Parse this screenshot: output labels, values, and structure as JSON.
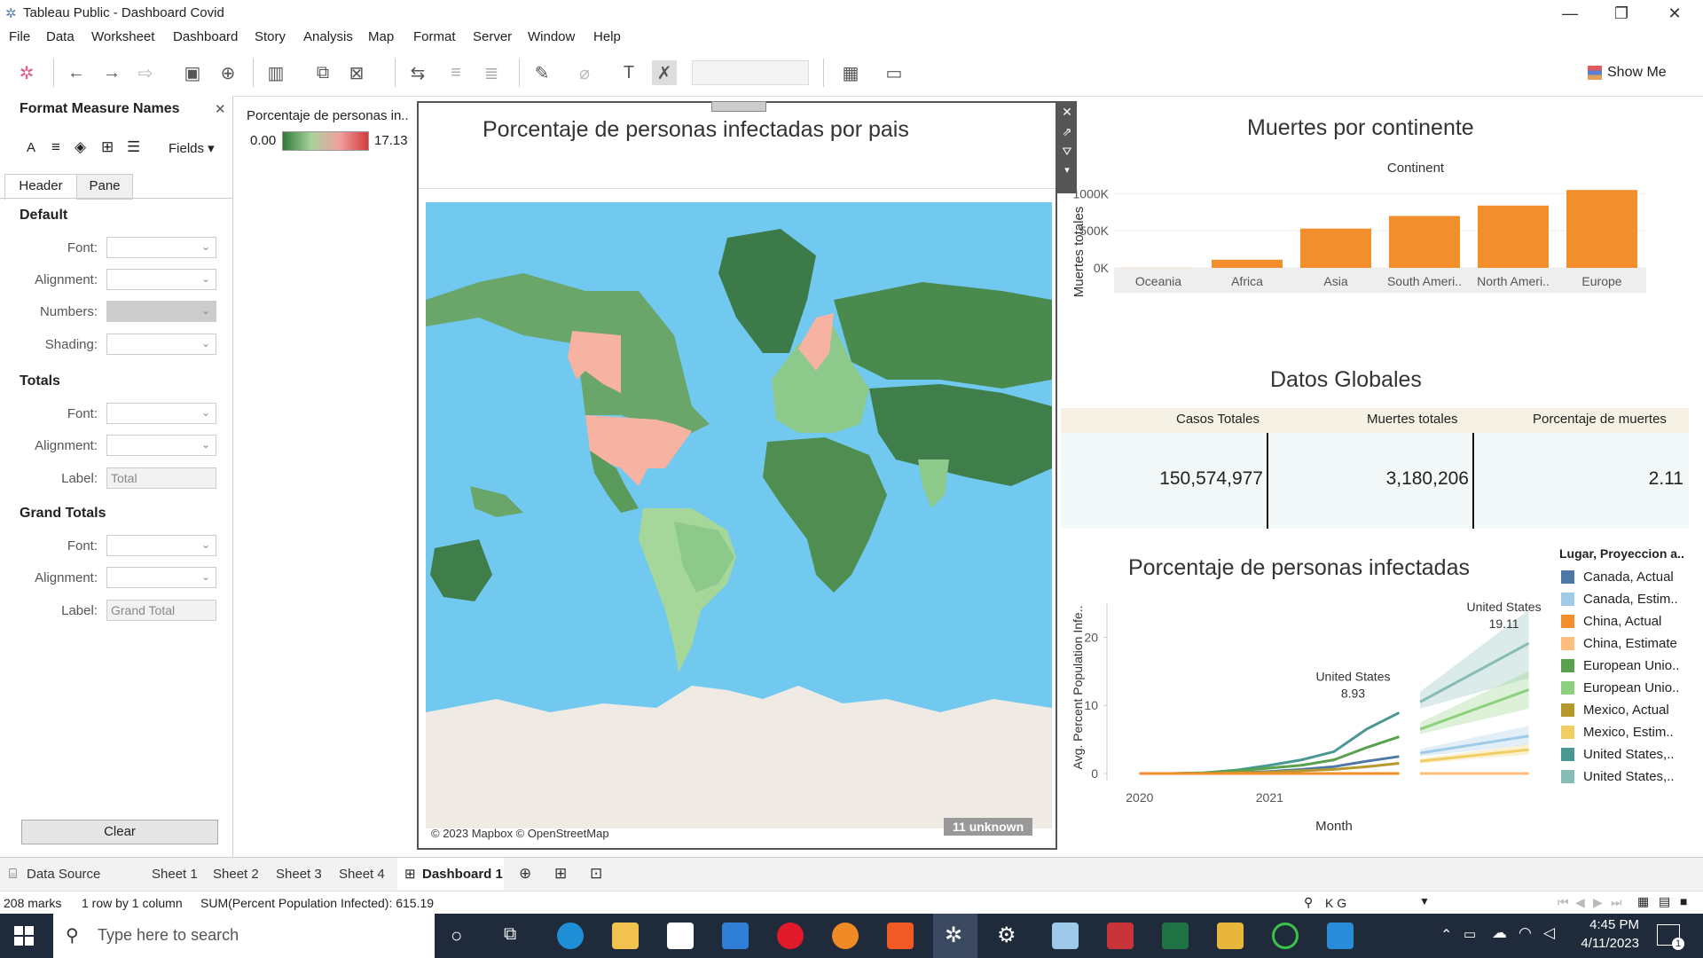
{
  "window": {
    "title": "Tableau Public - Dashboard Covid"
  },
  "menu": [
    "File",
    "Data",
    "Worksheet",
    "Dashboard",
    "Story",
    "Analysis",
    "Map",
    "Format",
    "Server",
    "Window",
    "Help"
  ],
  "toolbar": {
    "show_me": "Show Me"
  },
  "format_pane": {
    "title": "Format Measure Names",
    "fields_label": "Fields",
    "tabs": [
      "Header",
      "Pane"
    ],
    "sections": {
      "default": {
        "title": "Default",
        "font": "Font:",
        "alignment": "Alignment:",
        "numbers": "Numbers:",
        "shading": "Shading:"
      },
      "totals": {
        "title": "Totals",
        "font": "Font:",
        "alignment": "Alignment:",
        "label": "Label:",
        "label_value": "Total"
      },
      "grand_totals": {
        "title": "Grand Totals",
        "font": "Font:",
        "alignment": "Alignment:",
        "label": "Label:",
        "label_value": "Grand Total"
      }
    },
    "clear": "Clear"
  },
  "legend": {
    "title": "Porcentaje de personas in..",
    "min": "0.00",
    "max": "17.13"
  },
  "map": {
    "title": "Porcentaje de personas infectadas por pais",
    "credit": "© 2023 Mapbox © OpenStreetMap",
    "unknown": "11 unknown"
  },
  "deaths_chart": {
    "title": "Muertes por continente",
    "header": "Continent",
    "ylabel": "Muertes totales",
    "ticks": [
      "1000K",
      "500K",
      "0K"
    ]
  },
  "global": {
    "title": "Datos Globales",
    "headers": [
      "Casos Totales",
      "Muertes totales",
      "Porcentaje de muertes"
    ],
    "values": [
      "150,574,977",
      "3,180,206",
      "2.11"
    ]
  },
  "infected_chart": {
    "title": "Porcentaje de personas infectadas",
    "ylabel": "Avg. Percent Population Infe..",
    "xlabel": "Month",
    "yticks": [
      "20",
      "10",
      "0"
    ],
    "xticks": [
      "2020",
      "2021"
    ],
    "annotations": [
      {
        "label": "United States",
        "value": "8.93"
      },
      {
        "label": "United States",
        "value": "19.11"
      }
    ],
    "legend_title": "Lugar, Proyeccion a..",
    "legend": [
      {
        "label": "Canada, Actual",
        "color": "#4e79a7"
      },
      {
        "label": "Canada, Estim..",
        "color": "#a0cbe8"
      },
      {
        "label": "China, Actual",
        "color": "#f28e2b"
      },
      {
        "label": "China, Estimate",
        "color": "#ffbe7d"
      },
      {
        "label": "European Unio..",
        "color": "#59a14f"
      },
      {
        "label": "European Unio..",
        "color": "#8cd17d"
      },
      {
        "label": "Mexico, Actual",
        "color": "#b6992d"
      },
      {
        "label": "Mexico, Estim..",
        "color": "#f1ce63"
      },
      {
        "label": "United States,..",
        "color": "#499894"
      },
      {
        "label": "United States,..",
        "color": "#86bcb6"
      }
    ]
  },
  "chart_data": [
    {
      "type": "bar",
      "title": "Muertes por continente",
      "categories": [
        "Oceania",
        "Africa",
        "Asia",
        "South Ameri..",
        "North Ameri..",
        "Europe"
      ],
      "values": [
        2000,
        110000,
        530000,
        700000,
        840000,
        1050000
      ],
      "ylabel": "Muertes totales",
      "ylim": [
        0,
        1100000
      ],
      "color": "#f28e2b"
    },
    {
      "type": "line",
      "title": "Porcentaje de personas infectadas",
      "xlabel": "Month",
      "ylabel": "Avg. Percent Population Infe..",
      "ylim": [
        0,
        25
      ],
      "x_actual": [
        "2020-01",
        "2020-04",
        "2020-07",
        "2020-10",
        "2021-01",
        "2021-04",
        "2021-07",
        "2021-10",
        "2022-01"
      ],
      "series_actual": [
        {
          "color": "#499894",
          "values": [
            0,
            0,
            0.1,
            0.5,
            1.2,
            2.0,
            3.2,
            6.5,
            8.93
          ]
        },
        {
          "color": "#59a14f",
          "values": [
            0,
            0,
            0.1,
            0.4,
            0.8,
            1.2,
            2.0,
            3.8,
            5.4
          ]
        },
        {
          "color": "#4e79a7",
          "values": [
            0,
            0,
            0,
            0.1,
            0.3,
            0.6,
            1.0,
            1.8,
            2.5
          ]
        },
        {
          "color": "#b6992d",
          "values": [
            0,
            0,
            0,
            0.1,
            0.2,
            0.4,
            0.6,
            1.0,
            1.5
          ]
        },
        {
          "color": "#f28e2b",
          "values": [
            0,
            0,
            0,
            0,
            0,
            0,
            0,
            0,
            0
          ]
        }
      ],
      "x_estimate": [
        "2022-03",
        "2023-01"
      ],
      "series_estimate": [
        {
          "color": "#86bcb6",
          "values": [
            10.5,
            19.11
          ],
          "band": [
            [
              9.5,
              12
            ],
            [
              14,
              24
            ]
          ]
        },
        {
          "color": "#8cd17d",
          "values": [
            6.5,
            12.3
          ],
          "band": [
            [
              5.8,
              7.5
            ],
            [
              9.5,
              15
            ]
          ]
        },
        {
          "color": "#a0cbe8",
          "values": [
            3.0,
            5.5
          ],
          "band": [
            [
              2.5,
              3.6
            ],
            [
              4.2,
              7
            ]
          ]
        },
        {
          "color": "#f1ce63",
          "values": [
            1.8,
            3.5
          ],
          "band": [
            [
              1.5,
              2.2
            ],
            [
              2.8,
              4.3
            ]
          ]
        },
        {
          "color": "#ffbe7d",
          "values": [
            0,
            0
          ],
          "band": [
            [
              0,
              0
            ],
            [
              0,
              0
            ]
          ]
        }
      ]
    }
  ],
  "sheet_tabs": [
    "Data Source",
    "Sheet 1",
    "Sheet 2",
    "Sheet 3",
    "Sheet 4",
    "Dashboard 1"
  ],
  "status": {
    "marks": "208 marks",
    "rows": "1 row by 1 column",
    "sum": "SUM(Percent Population Infected): 615.19",
    "user": "K G"
  },
  "taskbar": {
    "search": "Type here to search",
    "time": "4:45 PM",
    "date": "4/11/2023",
    "notif": "1"
  }
}
